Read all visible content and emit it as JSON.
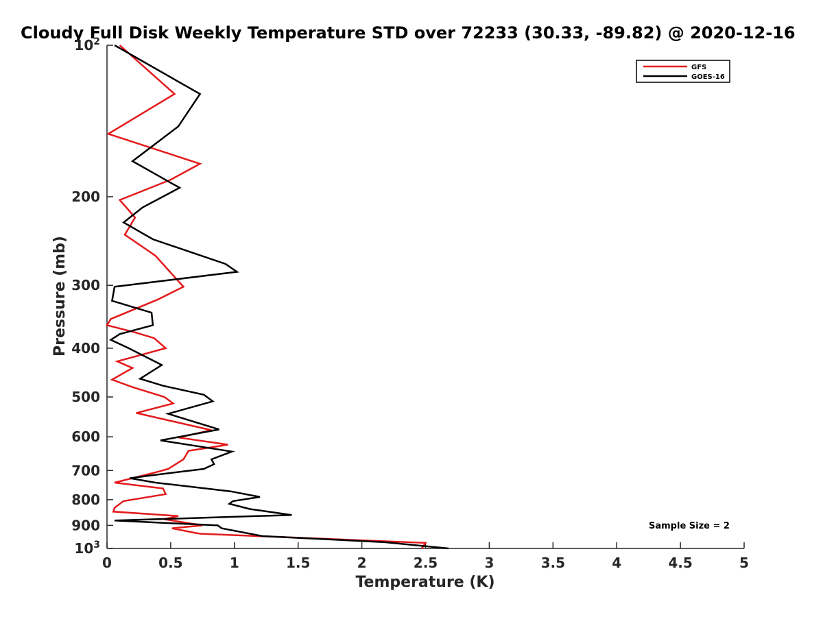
{
  "chart_data": {
    "type": "line",
    "title": "Cloudy Full Disk Weekly Temperature STD over 72233 (30.33, -89.82) @ 2020-12-16",
    "xlabel": "Temperature (K)",
    "ylabel": "Pressure (mb)",
    "xlim": [
      0,
      5
    ],
    "ylim": [
      100,
      1000
    ],
    "y_scale": "log",
    "y_reversed": true,
    "grid": false,
    "legend_position": "top-right",
    "x_ticks": [
      0,
      0.5,
      1,
      1.5,
      2,
      2.5,
      3,
      3.5,
      4,
      4.5,
      5
    ],
    "x_tick_labels": [
      "0",
      "0.5",
      "1",
      "1.5",
      "2",
      "2.5",
      "3",
      "3.5",
      "4",
      "4.5",
      "5"
    ],
    "y_ticks": [
      {
        "value": 100,
        "label": "10",
        "sup": "2"
      },
      {
        "value": 200,
        "label": "200",
        "sup": ""
      },
      {
        "value": 300,
        "label": "300",
        "sup": ""
      },
      {
        "value": 400,
        "label": "400",
        "sup": ""
      },
      {
        "value": 500,
        "label": "500",
        "sup": ""
      },
      {
        "value": 600,
        "label": "600",
        "sup": ""
      },
      {
        "value": 700,
        "label": "700",
        "sup": ""
      },
      {
        "value": 800,
        "label": "800",
        "sup": ""
      },
      {
        "value": 900,
        "label": "900",
        "sup": ""
      },
      {
        "value": 1000,
        "label": "10",
        "sup": "3"
      }
    ],
    "series": [
      {
        "name": "GFS",
        "color": "#e31a1c",
        "points": [
          [
            0.1,
            100
          ],
          [
            0.53,
            125
          ],
          [
            0.01,
            150
          ],
          [
            0.73,
            172
          ],
          [
            0.5,
            185
          ],
          [
            0.1,
            203
          ],
          [
            0.22,
            220
          ],
          [
            0.14,
            238
          ],
          [
            0.38,
            262
          ],
          [
            0.6,
            302
          ],
          [
            0.4,
            320
          ],
          [
            0.03,
            350
          ],
          [
            0.0,
            360
          ],
          [
            0.22,
            372
          ],
          [
            0.37,
            382
          ],
          [
            0.46,
            400
          ],
          [
            0.08,
            425
          ],
          [
            0.2,
            438
          ],
          [
            0.04,
            462
          ],
          [
            0.2,
            478
          ],
          [
            0.45,
            500
          ],
          [
            0.52,
            515
          ],
          [
            0.23,
            538
          ],
          [
            0.82,
            582
          ],
          [
            0.56,
            602
          ],
          [
            0.95,
            622
          ],
          [
            0.64,
            640
          ],
          [
            0.6,
            665
          ],
          [
            0.48,
            695
          ],
          [
            0.42,
            702
          ],
          [
            0.06,
            740
          ],
          [
            0.44,
            760
          ],
          [
            0.46,
            780
          ],
          [
            0.13,
            805
          ],
          [
            0.06,
            830
          ],
          [
            0.05,
            845
          ],
          [
            0.56,
            862
          ],
          [
            0.45,
            875
          ],
          [
            0.75,
            900
          ],
          [
            0.51,
            912
          ],
          [
            0.7,
            932
          ],
          [
            0.74,
            935
          ],
          [
            2.5,
            975
          ],
          [
            2.47,
            1000
          ]
        ]
      },
      {
        "name": "GOES-16",
        "color": "#000000",
        "points": [
          [
            0.06,
            100
          ],
          [
            0.73,
            125
          ],
          [
            0.56,
            145
          ],
          [
            0.2,
            170
          ],
          [
            0.57,
            192
          ],
          [
            0.28,
            210
          ],
          [
            0.13,
            225
          ],
          [
            0.36,
            243
          ],
          [
            0.93,
            272
          ],
          [
            1.02,
            282
          ],
          [
            0.06,
            302
          ],
          [
            0.04,
            322
          ],
          [
            0.35,
            340
          ],
          [
            0.36,
            360
          ],
          [
            0.1,
            375
          ],
          [
            0.03,
            385
          ],
          [
            0.17,
            400
          ],
          [
            0.43,
            432
          ],
          [
            0.26,
            460
          ],
          [
            0.44,
            475
          ],
          [
            0.76,
            495
          ],
          [
            0.83,
            510
          ],
          [
            0.48,
            540
          ],
          [
            0.88,
            580
          ],
          [
            0.42,
            610
          ],
          [
            0.98,
            642
          ],
          [
            0.82,
            665
          ],
          [
            0.84,
            680
          ],
          [
            0.76,
            695
          ],
          [
            0.36,
            715
          ],
          [
            0.18,
            725
          ],
          [
            0.38,
            740
          ],
          [
            0.97,
            770
          ],
          [
            1.2,
            790
          ],
          [
            0.99,
            805
          ],
          [
            0.96,
            815
          ],
          [
            1.12,
            835
          ],
          [
            1.45,
            858
          ],
          [
            0.06,
            880
          ],
          [
            0.87,
            900
          ],
          [
            0.9,
            912
          ],
          [
            1.22,
            945
          ],
          [
            2.18,
            972
          ],
          [
            2.68,
            1000
          ]
        ]
      }
    ],
    "annotations": [
      {
        "text": "Sample Size = 2"
      }
    ]
  }
}
